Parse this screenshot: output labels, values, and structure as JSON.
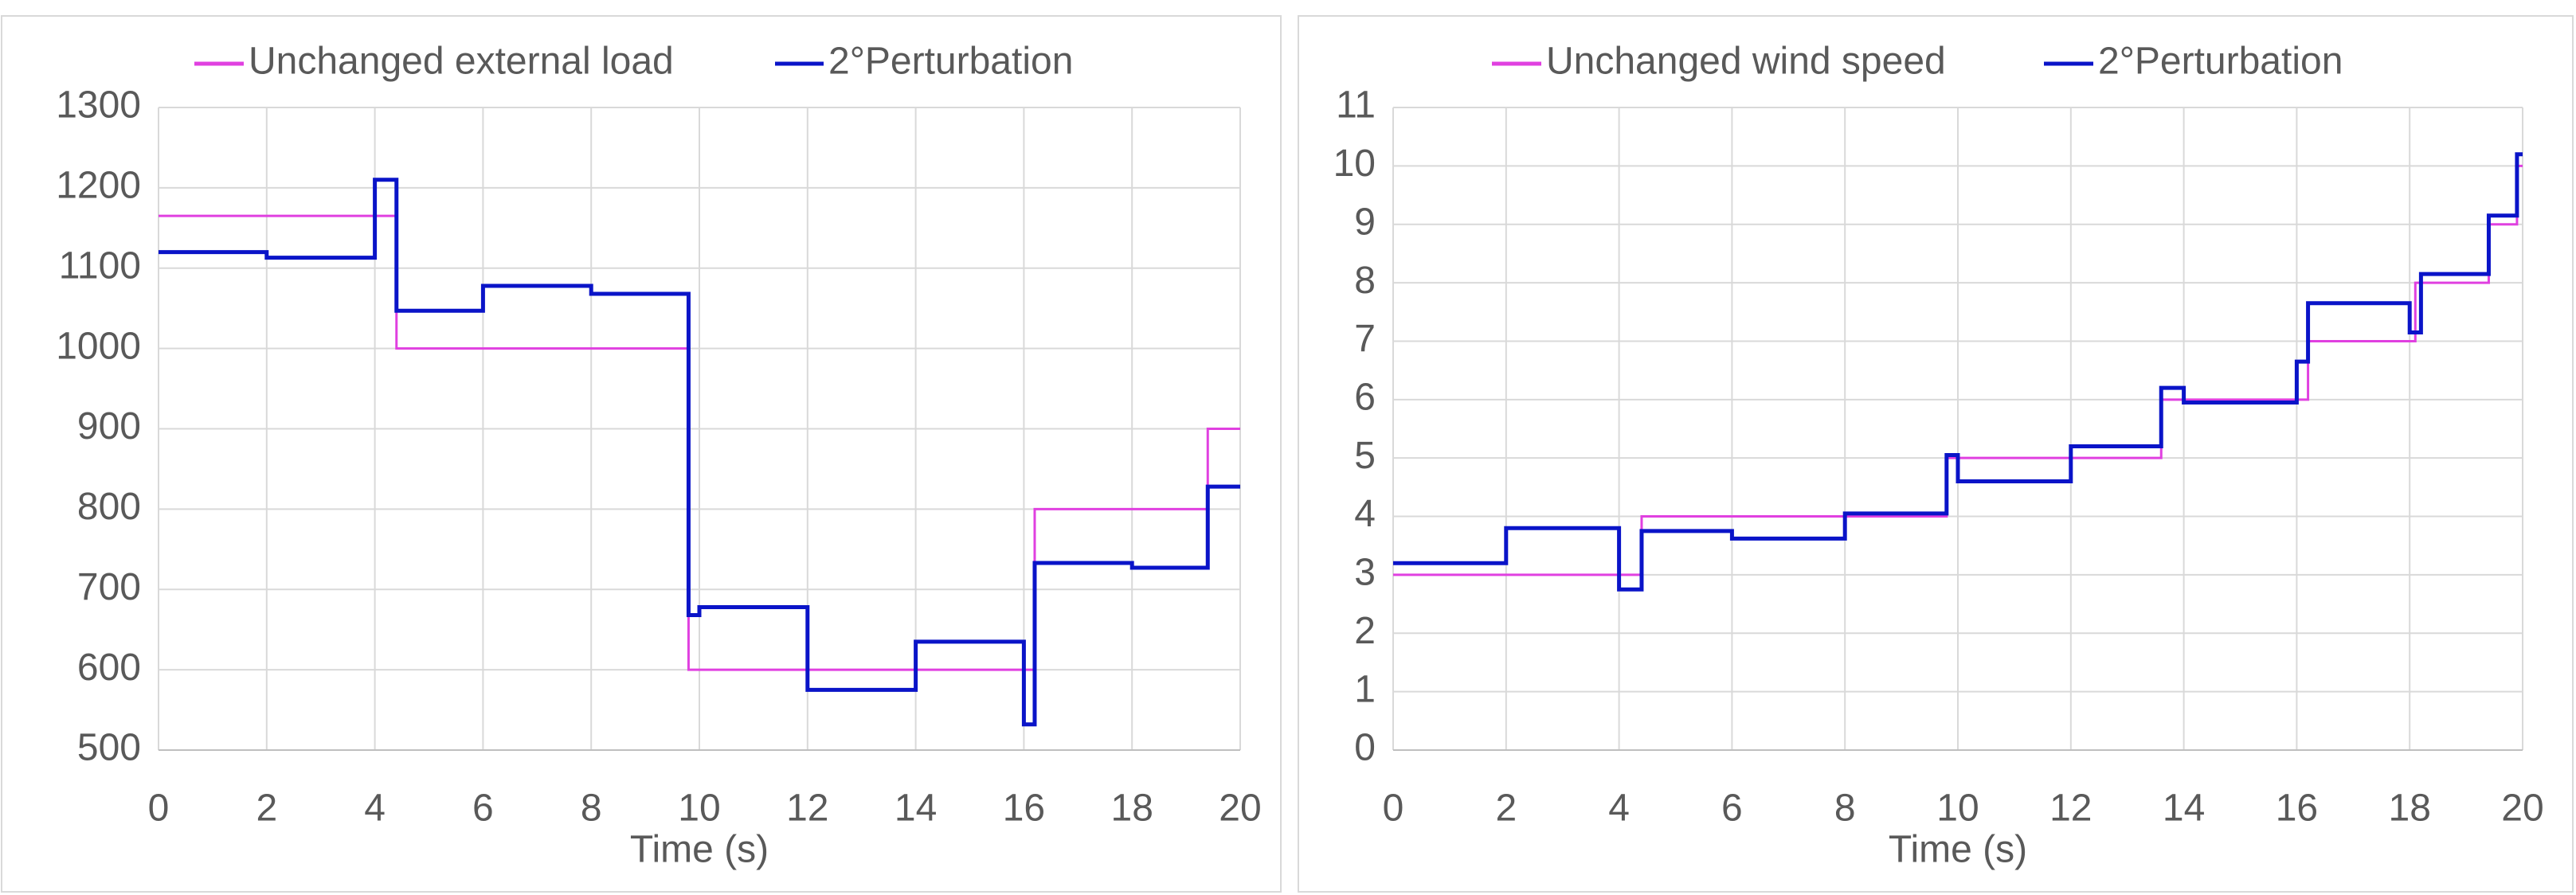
{
  "chart_data": [
    {
      "type": "line",
      "x_label": "Time (s)",
      "xlim": [
        0,
        20
      ],
      "xticks": [
        0,
        2,
        4,
        6,
        8,
        10,
        12,
        14,
        16,
        18,
        20
      ],
      "ylim": [
        500,
        1300
      ],
      "yticks": [
        500,
        600,
        700,
        800,
        900,
        1000,
        1100,
        1200,
        1300
      ],
      "grid": true,
      "legend": "top",
      "series": [
        {
          "name": "Unchanged external load",
          "color": "#e040e0",
          "x": [
            0,
            4.4,
            4.4,
            9.8,
            9.8,
            16.2,
            16.2,
            19.4,
            19.4,
            20
          ],
          "values": [
            1165,
            1165,
            1000,
            1000,
            600,
            600,
            800,
            800,
            900,
            900
          ]
        },
        {
          "name": "2°Perturbation",
          "color": "#0a14c8",
          "x": [
            0,
            2,
            2,
            4,
            4,
            4.4,
            4.4,
            6,
            6,
            8,
            8,
            9.8,
            9.8,
            10,
            10,
            12,
            12,
            14,
            14,
            16,
            16,
            16.2,
            16.2,
            18,
            18,
            19.4,
            19.4,
            20
          ],
          "values": [
            1120,
            1120,
            1113,
            1113,
            1210,
            1210,
            1047,
            1047,
            1078,
            1078,
            1068,
            1068,
            668,
            668,
            678,
            678,
            575,
            575,
            635,
            635,
            532,
            532,
            733,
            733,
            727,
            727,
            828,
            828
          ]
        }
      ]
    },
    {
      "type": "line",
      "x_label": "Time (s)",
      "xlim": [
        0,
        20
      ],
      "xticks": [
        0,
        2,
        4,
        6,
        8,
        10,
        12,
        14,
        16,
        18,
        20
      ],
      "ylim": [
        0,
        11
      ],
      "yticks": [
        0,
        1,
        2,
        3,
        4,
        5,
        6,
        7,
        8,
        9,
        10,
        11
      ],
      "grid": true,
      "legend": "top",
      "series": [
        {
          "name": "Unchanged wind speed",
          "color": "#e040e0",
          "x": [
            0,
            4.4,
            4.4,
            9.8,
            9.8,
            13.6,
            13.6,
            16.2,
            16.2,
            18.1,
            18.1,
            19.4,
            19.4,
            19.9,
            19.9,
            20
          ],
          "values": [
            3,
            3,
            4,
            4,
            5,
            5,
            6,
            6,
            7,
            7,
            8,
            8,
            9,
            9,
            10,
            10
          ]
        },
        {
          "name": "2°Perturbation",
          "color": "#0a14c8",
          "x": [
            0,
            2,
            2,
            4,
            4,
            4.4,
            4.4,
            6,
            6,
            8,
            8,
            9.8,
            9.8,
            10,
            10,
            12,
            12,
            13.6,
            13.6,
            14,
            14,
            16,
            16,
            16.2,
            16.2,
            18,
            18,
            18.2,
            18.2,
            19.4,
            19.4,
            19.9,
            19.9,
            20
          ],
          "values": [
            3.2,
            3.2,
            3.8,
            3.8,
            2.75,
            2.75,
            3.75,
            3.75,
            3.62,
            3.62,
            4.05,
            4.05,
            5.05,
            5.05,
            4.6,
            4.6,
            5.2,
            5.2,
            6.2,
            6.2,
            5.95,
            5.95,
            6.65,
            6.65,
            7.65,
            7.65,
            7.15,
            7.15,
            8.15,
            8.15,
            9.15,
            9.15,
            10.2,
            10.2
          ]
        }
      ]
    }
  ]
}
